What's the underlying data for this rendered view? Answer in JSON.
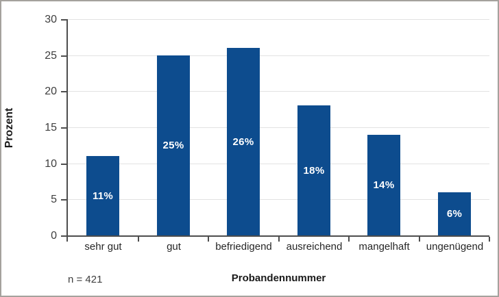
{
  "chart_data": {
    "type": "bar",
    "title": "",
    "categories": [
      "sehr gut",
      "gut",
      "befriedigend",
      "ausreichend",
      "mangelhaft",
      "ungenügend"
    ],
    "values": [
      11,
      25,
      26,
      18,
      14,
      6
    ],
    "bar_labels": [
      "11%",
      "25%",
      "26%",
      "18%",
      "14%",
      "6%"
    ],
    "xlabel": "Probandennummer",
    "ylabel": "Prozent",
    "ylim": [
      0,
      30
    ],
    "yticks": [
      0,
      5,
      10,
      15,
      20,
      25,
      30
    ],
    "grid": true,
    "legend": false,
    "bar_color": "#0d4c8e",
    "bar_label_color": "#ffffff"
  },
  "footnote": "n = 421"
}
